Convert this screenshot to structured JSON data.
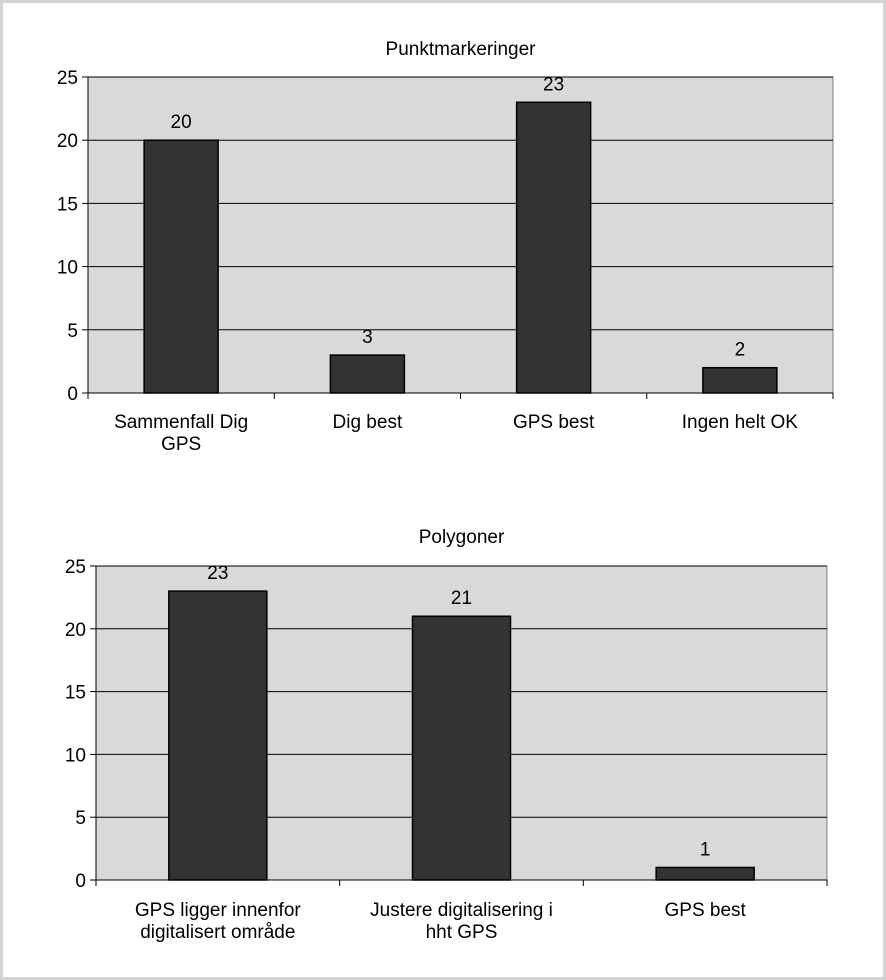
{
  "chart_data": [
    {
      "type": "bar",
      "title": "Punktmarkeringer",
      "categories": [
        "Sammenfall Dig GPS",
        "Dig best",
        "GPS best",
        "Ingen helt OK"
      ],
      "category_lines": [
        [
          "Sammenfall Dig",
          "GPS"
        ],
        [
          "Dig best"
        ],
        [
          "GPS best"
        ],
        [
          "Ingen helt OK"
        ]
      ],
      "values": [
        20,
        3,
        23,
        2
      ],
      "value_labels": [
        "20",
        "3",
        "23",
        "2"
      ],
      "yticks": [
        "0",
        "5",
        "10",
        "15",
        "20",
        "25"
      ],
      "ylim": [
        0,
        25
      ],
      "grid": true,
      "legend": "none",
      "colors": {
        "plot_bg": "#d9d9d9",
        "bar": "#333333",
        "bar_edge": "#000000"
      }
    },
    {
      "type": "bar",
      "title": "Polygoner",
      "categories": [
        "GPS ligger innenfor digitalisert område",
        "Justere digitalisering i hht GPS",
        "GPS best"
      ],
      "category_lines": [
        [
          "GPS ligger innenfor",
          "digitalisert område"
        ],
        [
          "Justere digitalisering i",
          "hht GPS"
        ],
        [
          "GPS best"
        ]
      ],
      "values": [
        23,
        21,
        1
      ],
      "value_labels": [
        "23",
        "21",
        "1"
      ],
      "yticks": [
        "0",
        "5",
        "10",
        "15",
        "20",
        "25"
      ],
      "ylim": [
        0,
        25
      ],
      "grid": true,
      "legend": "none",
      "colors": {
        "plot_bg": "#d9d9d9",
        "bar": "#333333",
        "bar_edge": "#000000"
      }
    }
  ]
}
